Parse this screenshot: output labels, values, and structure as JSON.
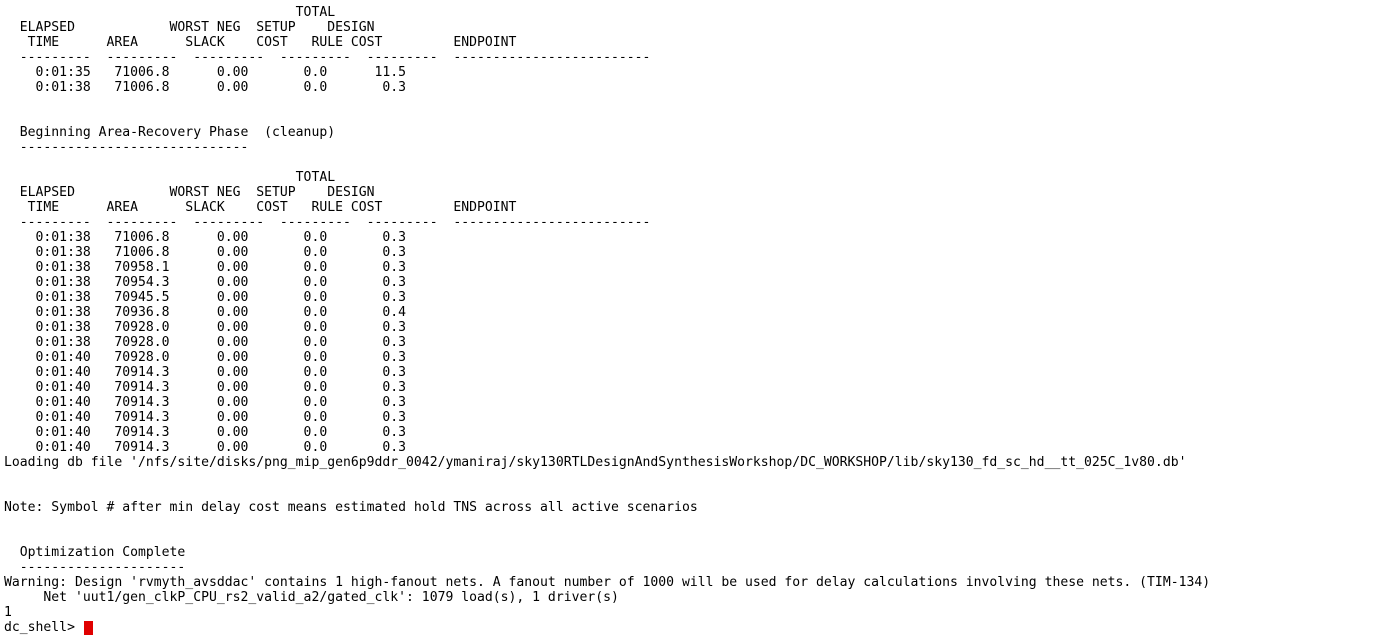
{
  "terminal": {
    "lines": [
      "",
      "                                     TOTAL",
      "  ELAPSED            WORST NEG  SETUP    DESIGN",
      "   TIME      AREA      SLACK    COST   RULE COST         ENDPOINT",
      "  ---------  ---------  ---------  ---------  ---------  -------------------------",
      "    0:01:35   71006.8      0.00       0.0      11.5",
      "    0:01:38   71006.8      0.00       0.0       0.3",
      "",
      "",
      "  Beginning Area-Recovery Phase  (cleanup)",
      "  -----------------------------",
      "",
      "                                     TOTAL",
      "  ELAPSED            WORST NEG  SETUP    DESIGN",
      "   TIME      AREA      SLACK    COST   RULE COST         ENDPOINT",
      "  ---------  ---------  ---------  ---------  ---------  -------------------------",
      "    0:01:38   71006.8      0.00       0.0       0.3",
      "    0:01:38   71006.8      0.00       0.0       0.3",
      "    0:01:38   70958.1      0.00       0.0       0.3",
      "    0:01:38   70954.3      0.00       0.0       0.3",
      "    0:01:38   70945.5      0.00       0.0       0.3",
      "    0:01:38   70936.8      0.00       0.0       0.4",
      "    0:01:38   70928.0      0.00       0.0       0.3",
      "    0:01:38   70928.0      0.00       0.0       0.3",
      "    0:01:40   70928.0      0.00       0.0       0.3",
      "    0:01:40   70914.3      0.00       0.0       0.3",
      "    0:01:40   70914.3      0.00       0.0       0.3",
      "    0:01:40   70914.3      0.00       0.0       0.3",
      "    0:01:40   70914.3      0.00       0.0       0.3",
      "    0:01:40   70914.3      0.00       0.0       0.3",
      "    0:01:40   70914.3      0.00       0.0       0.3",
      "Loading db file '/nfs/site/disks/png_mip_gen6p9ddr_0042/ymaniraj/sky130RTLDesignAndSynthesisWorkshop/DC_WORKSHOP/lib/sky130_fd_sc_hd__tt_025C_1v80.db'",
      "",
      "",
      "Note: Symbol # after min delay cost means estimated hold TNS across all active scenarios",
      "",
      "",
      "  Optimization Complete",
      "  ---------------------",
      "Warning: Design 'rvmyth_avsddac' contains 1 high-fanout nets. A fanout number of 1000 will be used for delay calculations involving these nets. (TIM-134)",
      "     Net 'uut1/gen_clkP_CPU_rs2_valid_a2/gated_clk': 1079 load(s), 1 driver(s)",
      "1"
    ],
    "prompt": "dc_shell> ",
    "input_value": "",
    "cursor_color": "#e00000"
  }
}
